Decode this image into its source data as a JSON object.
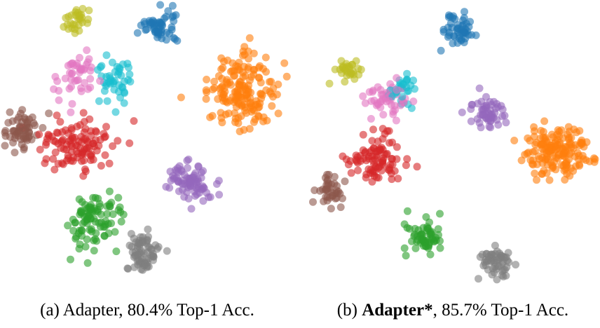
{
  "captions": {
    "a": {
      "label": "(a)",
      "method": "Adapter",
      "rest": ", 80.4% Top-1 Acc."
    },
    "b": {
      "label": "(b)",
      "method": "Adapter*",
      "rest": ", 85.7% Top-1 Acc."
    }
  },
  "class_colors": [
    "#1f77b4",
    "#ff7f0e",
    "#2ca02c",
    "#d62728",
    "#9467bd",
    "#8c564b",
    "#e377c2",
    "#7f7f7f",
    "#bcbd22",
    "#17becf"
  ],
  "chart_data": [
    {
      "type": "scatter",
      "title": "(a) Adapter, 80.4% Top-1 Acc.",
      "xlabel": "",
      "ylabel": "",
      "xlim": [
        0,
        420
      ],
      "ylim": [
        0,
        420
      ],
      "grid": false,
      "clusters": [
        {
          "class": 0,
          "color": "#1f77b4",
          "cx": 228,
          "cy": 40,
          "rx": 28,
          "ry": 26,
          "n": 55
        },
        {
          "class": 1,
          "color": "#ff7f0e",
          "cx": 345,
          "cy": 130,
          "rx": 55,
          "ry": 55,
          "n": 170
        },
        {
          "class": 2,
          "color": "#2ca02c",
          "cx": 135,
          "cy": 315,
          "rx": 40,
          "ry": 45,
          "n": 95
        },
        {
          "class": 3,
          "color": "#d62728",
          "cx": 110,
          "cy": 205,
          "rx": 60,
          "ry": 40,
          "n": 110
        },
        {
          "class": 4,
          "color": "#9467bd",
          "cx": 270,
          "cy": 260,
          "rx": 35,
          "ry": 35,
          "n": 80
        },
        {
          "class": 5,
          "color": "#8c564b",
          "cx": 30,
          "cy": 190,
          "rx": 30,
          "ry": 30,
          "n": 60
        },
        {
          "class": 6,
          "color": "#e377c2",
          "cx": 110,
          "cy": 110,
          "rx": 35,
          "ry": 40,
          "n": 45
        },
        {
          "class": 7,
          "color": "#7f7f7f",
          "cx": 205,
          "cy": 360,
          "rx": 28,
          "ry": 35,
          "n": 70
        },
        {
          "class": 8,
          "color": "#bcbd22",
          "cx": 110,
          "cy": 30,
          "rx": 20,
          "ry": 25,
          "n": 30
        },
        {
          "class": 9,
          "color": "#17becf",
          "cx": 165,
          "cy": 110,
          "rx": 30,
          "ry": 35,
          "n": 45
        }
      ]
    },
    {
      "type": "scatter",
      "title": "(b) Adapter*, 85.7% Top-1 Acc.",
      "xlabel": "",
      "ylabel": "",
      "xlim": [
        0,
        420
      ],
      "ylim": [
        0,
        420
      ],
      "grid": false,
      "clusters": [
        {
          "class": 0,
          "color": "#1f77b4",
          "cx": 218,
          "cy": 40,
          "rx": 25,
          "ry": 25,
          "n": 50
        },
        {
          "class": 1,
          "color": "#ff7f0e",
          "cx": 360,
          "cy": 215,
          "rx": 50,
          "ry": 40,
          "n": 160
        },
        {
          "class": 2,
          "color": "#2ca02c",
          "cx": 170,
          "cy": 340,
          "rx": 30,
          "ry": 30,
          "n": 60
        },
        {
          "class": 3,
          "color": "#d62728",
          "cx": 100,
          "cy": 225,
          "rx": 40,
          "ry": 35,
          "n": 90
        },
        {
          "class": 4,
          "color": "#9467bd",
          "cx": 260,
          "cy": 160,
          "rx": 28,
          "ry": 28,
          "n": 55
        },
        {
          "class": 5,
          "color": "#8c564b",
          "cx": 35,
          "cy": 270,
          "rx": 20,
          "ry": 30,
          "n": 40
        },
        {
          "class": 6,
          "color": "#e377c2",
          "cx": 115,
          "cy": 140,
          "rx": 35,
          "ry": 30,
          "n": 50
        },
        {
          "class": 7,
          "color": "#7f7f7f",
          "cx": 270,
          "cy": 375,
          "rx": 25,
          "ry": 25,
          "n": 55
        },
        {
          "class": 8,
          "color": "#bcbd22",
          "cx": 60,
          "cy": 100,
          "rx": 22,
          "ry": 15,
          "n": 30
        },
        {
          "class": 9,
          "color": "#17becf",
          "cx": 140,
          "cy": 125,
          "rx": 20,
          "ry": 30,
          "n": 30
        }
      ]
    }
  ]
}
